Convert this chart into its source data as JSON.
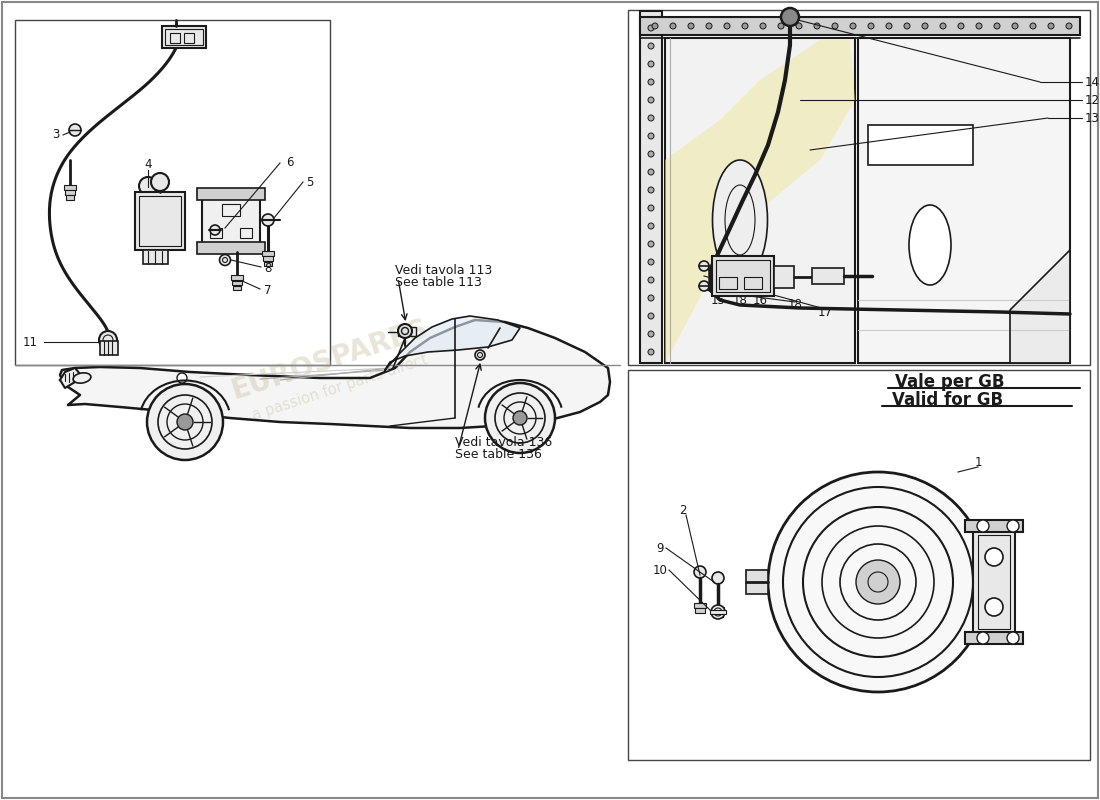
{
  "bg": "#ffffff",
  "lc": "#1a1a1a",
  "panel_border": "#555555",
  "gray_light": "#e8e8e8",
  "gray_med": "#d0d0d0",
  "gray_dark": "#999999",
  "yellow": "#f0e8a0",
  "note1a": "Vedi tavola 113",
  "note1b": "See table 113",
  "note2a": "Vedi tavola 136",
  "note2b": "See table 136",
  "gb1": "Vale per GB",
  "gb2": "Valid for GB",
  "wm1": "EUROSPARES",
  "wm2": "a passion for parts direct"
}
